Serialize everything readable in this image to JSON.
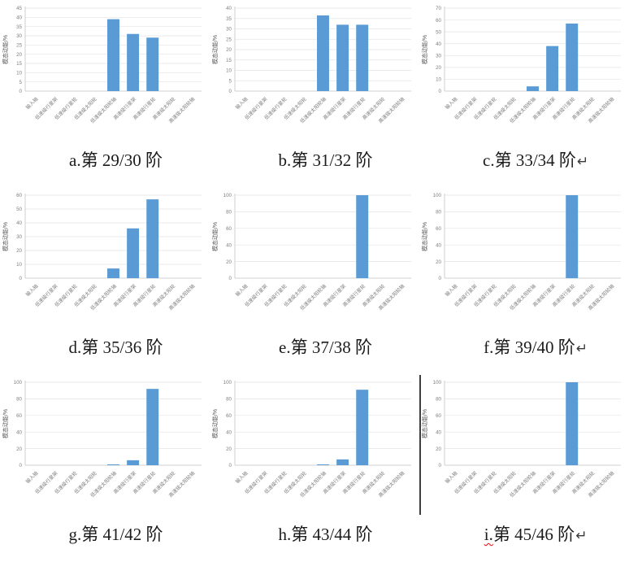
{
  "page": {
    "background": "#ffffff"
  },
  "colors": {
    "bar": "#5B9BD5",
    "gridline": "#e3e3e3",
    "axis_line": "#c3c3c3",
    "tick_text": "#7f7f7f",
    "axis_title_text": "#595959",
    "caption_text": "#1b1b1b",
    "divider": "#3f3f3f",
    "spellcheck_underline": "#e00000"
  },
  "categories": [
    "输入轴",
    "低速级行星架",
    "低速级行星轮",
    "低速级太阳轮",
    "低速级太阳轮轴",
    "高速级行星架",
    "高速级行星轮",
    "高速级太阳轮",
    "高速级太阳轮轴"
  ],
  "ylabel": "模态动能/%",
  "chart_data": [
    {
      "type": "bar",
      "title": "a.第 29/30 阶",
      "caption_leader": "a.",
      "caption_text": "第 29/30 阶",
      "return_mark": "",
      "leader_misspelled": false,
      "ylabel": "模态动能/%",
      "categories": [
        "输入轴",
        "低速级行星架",
        "低速级行星轮",
        "低速级太阳轮",
        "低速级太阳轮轴",
        "高速级行星架",
        "高速级行星轮",
        "高速级太阳轮",
        "高速级太阳轮轴"
      ],
      "values": [
        0,
        0,
        0,
        0,
        39,
        31,
        29,
        0,
        0
      ],
      "ylim": [
        0,
        45
      ],
      "ytick_step": 5,
      "grid": true,
      "legend": "none"
    },
    {
      "type": "bar",
      "title": "b.第 31/32 阶",
      "caption_leader": "b.",
      "caption_text": "第 31/32 阶",
      "return_mark": "",
      "leader_misspelled": false,
      "ylabel": "模态动能/%",
      "categories": [
        "输入轴",
        "低速级行星架",
        "低速级行星轮",
        "低速级太阳轮",
        "低速级太阳轮轴",
        "高速级行星架",
        "高速级行星轮",
        "高速级太阳轮",
        "高速级太阳轮轴"
      ],
      "values": [
        0,
        0,
        0,
        0,
        36.5,
        32,
        32,
        0,
        0
      ],
      "ylim": [
        0,
        40
      ],
      "ytick_step": 5,
      "grid": true,
      "legend": "none"
    },
    {
      "type": "bar",
      "title": "c.第 33/34 阶",
      "caption_leader": "c.",
      "caption_text": "第 33/34 阶",
      "return_mark": "↵",
      "leader_misspelled": false,
      "ylabel": "模态动能/%",
      "categories": [
        "输入轴",
        "低速级行星架",
        "低速级行星轮",
        "低速级太阳轮",
        "低速级太阳轮轴",
        "高速级行星架",
        "高速级行星轮",
        "高速级太阳轮",
        "高速级太阳轮轴"
      ],
      "values": [
        0,
        0,
        0,
        0,
        4,
        38,
        57,
        0,
        0
      ],
      "ylim": [
        0,
        70
      ],
      "ytick_step": 10,
      "grid": true,
      "legend": "none"
    },
    {
      "type": "bar",
      "title": "d.第 35/36 阶",
      "caption_leader": "d.",
      "caption_text": "第 35/36 阶",
      "return_mark": "",
      "leader_misspelled": false,
      "ylabel": "模态动能/%",
      "categories": [
        "输入轴",
        "低速级行星架",
        "低速级行星轮",
        "低速级太阳轮",
        "低速级太阳轮轴",
        "高速级行星架",
        "高速级行星轮",
        "高速级太阳轮",
        "高速级太阳轮轴"
      ],
      "values": [
        0,
        0,
        0,
        0,
        7,
        36,
        57,
        0,
        0
      ],
      "ylim": [
        0,
        60
      ],
      "ytick_step": 10,
      "grid": true,
      "legend": "none"
    },
    {
      "type": "bar",
      "title": "e.第 37/38 阶",
      "caption_leader": "e.",
      "caption_text": "第 37/38 阶",
      "return_mark": "",
      "leader_misspelled": false,
      "ylabel": "模态动能/%",
      "categories": [
        "输入轴",
        "低速级行星架",
        "低速级行星轮",
        "低速级太阳轮",
        "低速级太阳轮轴",
        "高速级行星架",
        "高速级行星轮",
        "高速级太阳轮",
        "高速级太阳轮轴"
      ],
      "values": [
        0,
        0,
        0,
        0,
        0,
        0,
        100,
        0,
        0
      ],
      "ylim": [
        0,
        100
      ],
      "ytick_step": 20,
      "grid": true,
      "legend": "none"
    },
    {
      "type": "bar",
      "title": "f.第 39/40 阶",
      "caption_leader": "f.",
      "caption_text": "第 39/40 阶",
      "return_mark": "↵",
      "leader_misspelled": false,
      "ylabel": "模态动能/%",
      "categories": [
        "输入轴",
        "低速级行星架",
        "低速级行星轮",
        "低速级太阳轮",
        "低速级太阳轮轴",
        "高速级行星架",
        "高速级行星轮",
        "高速级太阳轮",
        "高速级太阳轮轴"
      ],
      "values": [
        0,
        0,
        0,
        0,
        0,
        0,
        100,
        0,
        0
      ],
      "ylim": [
        0,
        100
      ],
      "ytick_step": 20,
      "grid": true,
      "legend": "none"
    },
    {
      "type": "bar",
      "title": "g.第 41/42 阶",
      "caption_leader": "g.",
      "caption_text": "第 41/42 阶",
      "return_mark": "",
      "leader_misspelled": false,
      "ylabel": "模态动能/%",
      "categories": [
        "输入轴",
        "低速级行星架",
        "低速级行星轮",
        "低速级太阳轮",
        "低速级太阳轮轴",
        "高速级行星架",
        "高速级行星轮",
        "高速级太阳轮",
        "高速级太阳轮轴"
      ],
      "values": [
        0,
        0,
        0,
        0,
        1,
        6,
        92,
        0,
        0
      ],
      "ylim": [
        0,
        100
      ],
      "ytick_step": 20,
      "grid": true,
      "legend": "none"
    },
    {
      "type": "bar",
      "title": "h.第 43/44 阶",
      "caption_leader": "h.",
      "caption_text": "第 43/44 阶",
      "return_mark": "",
      "leader_misspelled": false,
      "ylabel": "模态动能/%",
      "categories": [
        "输入轴",
        "低速级行星架",
        "低速级行星轮",
        "低速级太阳轮",
        "低速级太阳轮轴",
        "高速级行星架",
        "高速级行星轮",
        "高速级太阳轮",
        "高速级太阳轮轴"
      ],
      "values": [
        0,
        0,
        0,
        0,
        1,
        7,
        91,
        0,
        0
      ],
      "ylim": [
        0,
        100
      ],
      "ytick_step": 20,
      "grid": true,
      "legend": "none"
    },
    {
      "type": "bar",
      "title": "i.第 45/46 阶",
      "caption_leader": "i.",
      "caption_text": "第 45/46 阶",
      "return_mark": "↵",
      "leader_misspelled": true,
      "ylabel": "模态动能/%",
      "categories": [
        "输入轴",
        "低速级行星架",
        "低速级行星轮",
        "低速级太阳轮",
        "低速级太阳轮轴",
        "高速级行星架",
        "高速级行星轮",
        "高速级太阳轮",
        "高速级太阳轮轴"
      ],
      "values": [
        0,
        0,
        0,
        0,
        0,
        0,
        100,
        0,
        0
      ],
      "ylim": [
        0,
        100
      ],
      "ytick_step": 20,
      "grid": true,
      "legend": "none"
    }
  ],
  "divider": {
    "present": true
  }
}
